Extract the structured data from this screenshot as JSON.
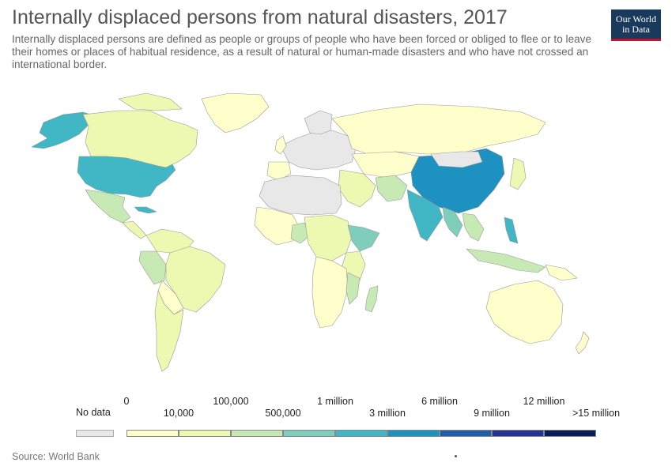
{
  "title": "Internally displaced persons from natural disasters, 2017",
  "subtitle": "Internally displaced persons are defined as people or groups of people who have been forced or obliged to flee or to leave their homes or places of habitual residence, as a result of natural or human-made disasters and who have not crossed an international border.",
  "logo": {
    "line1": "Our World",
    "line2": "in Data"
  },
  "source": "Source: World Bank",
  "legend": {
    "no_data_label": "No data",
    "no_data_color": "#e8e8e8",
    "top_labels": [
      "0",
      "100,000",
      "1 million",
      "6 million",
      "12 million"
    ],
    "bottom_labels": [
      "10,000",
      "500,000",
      "3 million",
      "9 million",
      ">15 million"
    ],
    "bins": [
      {
        "color": "#ffffcc"
      },
      {
        "color": "#edf8b1"
      },
      {
        "color": "#c7e9b4"
      },
      {
        "color": "#7fcdbb"
      },
      {
        "color": "#41b6c4"
      },
      {
        "color": "#1d91c0"
      },
      {
        "color": "#225ea8"
      },
      {
        "color": "#253494"
      },
      {
        "color": "#081d58"
      }
    ]
  },
  "map": {
    "colors": {
      "ocean": "#ffffff",
      "nodata": "#e8e8e8",
      "border": "#999999"
    }
  }
}
